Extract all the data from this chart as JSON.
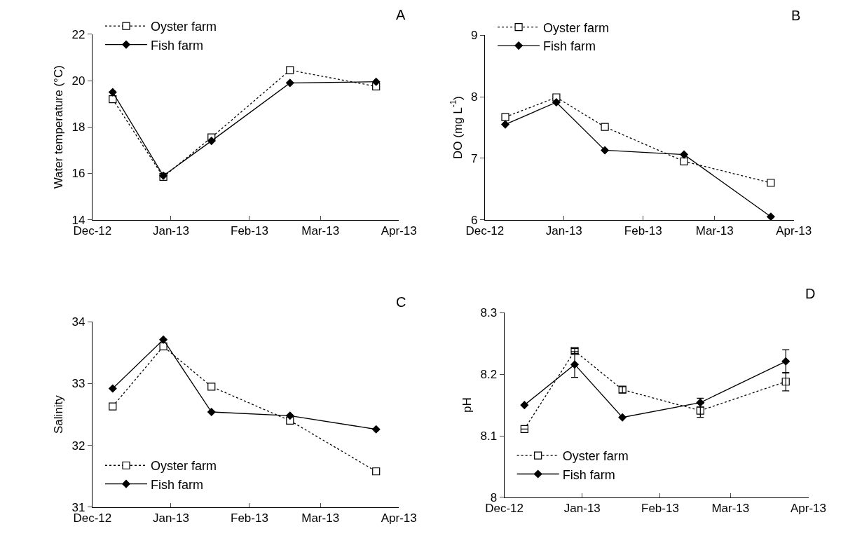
{
  "chart_data": [
    {
      "type": "line",
      "ylabel": "Water temperature (°C)",
      "annotations": [
        "A"
      ],
      "x": [
        "2012-12-09",
        "2012-12-29",
        "2013-01-17",
        "2013-02-17",
        "2013-03-23"
      ],
      "series": [
        {
          "name": "Oyster farm",
          "color": "#000000",
          "values": [
            19.2,
            15.85,
            17.55,
            20.45,
            19.75
          ],
          "marker": "square",
          "line_style": "dotted"
        },
        {
          "name": "Fish farm",
          "color": "#000000",
          "values": [
            19.5,
            15.9,
            17.4,
            19.9,
            19.95
          ],
          "marker": "diamond",
          "line_style": "solid"
        }
      ],
      "xlim": [
        "2012-12-01",
        "2013-04-01"
      ],
      "xticks": [
        {
          "value": "2012-12-01",
          "label": "Dec-12"
        },
        {
          "value": "2013-01-01",
          "label": "Jan-13"
        },
        {
          "value": "2013-02-01",
          "label": "Feb-13"
        },
        {
          "value": "2013-03-01",
          "label": "Mar-13"
        },
        {
          "value": "2013-04-01",
          "label": "Apr-13"
        }
      ],
      "ylim": [
        14,
        22
      ],
      "yticks": [
        14,
        16,
        18,
        20,
        22
      ],
      "legend": "top left"
    },
    {
      "type": "line",
      "ylabel": "DO (mg L$^{-1}$)",
      "annotations": [
        "B"
      ],
      "x": [
        "2012-12-09",
        "2012-12-29",
        "2013-01-17",
        "2013-02-17",
        "2013-03-23"
      ],
      "series": [
        {
          "name": "Oyster farm",
          "color": "#000000",
          "values": [
            7.67,
            7.99,
            7.51,
            6.95,
            6.6
          ],
          "marker": "square",
          "line_style": "dotted"
        },
        {
          "name": "Fish farm",
          "color": "#000000",
          "values": [
            7.55,
            7.91,
            7.13,
            7.06,
            6.05
          ],
          "marker": "diamond",
          "line_style": "solid"
        }
      ],
      "xlim": [
        "2012-12-01",
        "2013-04-01"
      ],
      "xticks": [
        {
          "value": "2012-12-01",
          "label": "Dec-12"
        },
        {
          "value": "2013-01-01",
          "label": "Jan-13"
        },
        {
          "value": "2013-02-01",
          "label": "Feb-13"
        },
        {
          "value": "2013-03-01",
          "label": "Mar-13"
        },
        {
          "value": "2013-04-01",
          "label": "Apr-13"
        }
      ],
      "ylim": [
        6,
        9
      ],
      "yticks": [
        6,
        7,
        8,
        9
      ],
      "legend": "top left"
    },
    {
      "type": "line",
      "ylabel": "Salinity",
      "annotations": [
        "C"
      ],
      "x": [
        "2012-12-09",
        "2012-12-29",
        "2013-01-17",
        "2013-02-17",
        "2013-03-23"
      ],
      "series": [
        {
          "name": "Oyster farm",
          "color": "#000000",
          "values": [
            32.63,
            33.6,
            32.95,
            32.4,
            31.58
          ],
          "marker": "square",
          "line_style": "dotted"
        },
        {
          "name": "Fish farm",
          "color": "#000000",
          "values": [
            32.92,
            33.71,
            32.54,
            32.48,
            32.26
          ],
          "marker": "diamond",
          "line_style": "solid"
        }
      ],
      "xlim": [
        "2012-12-01",
        "2013-04-01"
      ],
      "xticks": [
        {
          "value": "2012-12-01",
          "label": "Dec-12"
        },
        {
          "value": "2013-01-01",
          "label": "Jan-13"
        },
        {
          "value": "2013-02-01",
          "label": "Feb-13"
        },
        {
          "value": "2013-03-01",
          "label": "Mar-13"
        },
        {
          "value": "2013-04-01",
          "label": "Apr-13"
        }
      ],
      "ylim": [
        31,
        34
      ],
      "yticks": [
        31,
        32,
        33,
        34
      ],
      "legend": "bottom left"
    },
    {
      "type": "line",
      "ylabel": "pH",
      "annotations": [
        "D"
      ],
      "x": [
        "2012-12-09",
        "2012-12-29",
        "2013-01-17",
        "2013-02-17",
        "2013-03-23"
      ],
      "series": [
        {
          "name": "Oyster farm",
          "color": "#000000",
          "values": [
            8.111,
            8.238,
            8.175,
            8.141,
            8.188
          ],
          "errors": [
            null,
            0.004,
            0.005,
            0.011,
            0.015
          ],
          "marker": "square",
          "line_style": "dotted"
        },
        {
          "name": "Fish farm",
          "color": "#000000",
          "values": [
            8.15,
            8.216,
            8.13,
            8.154,
            8.221
          ],
          "errors": [
            null,
            0.021,
            null,
            0.007,
            0.019
          ],
          "marker": "diamond",
          "line_style": "solid"
        }
      ],
      "xlim": [
        "2012-12-01",
        "2013-04-01"
      ],
      "xticks": [
        {
          "value": "2012-12-01",
          "label": "Dec-12"
        },
        {
          "value": "2013-01-01",
          "label": "Jan-13"
        },
        {
          "value": "2013-02-01",
          "label": "Feb-13"
        },
        {
          "value": "2013-03-01",
          "label": "Mar-13"
        },
        {
          "value": "2013-04-01",
          "label": "Apr-13"
        }
      ],
      "ylim": [
        8,
        8.3
      ],
      "yticks": [
        8,
        8.1,
        8.2,
        8.3
      ],
      "legend": "bottom left"
    }
  ]
}
